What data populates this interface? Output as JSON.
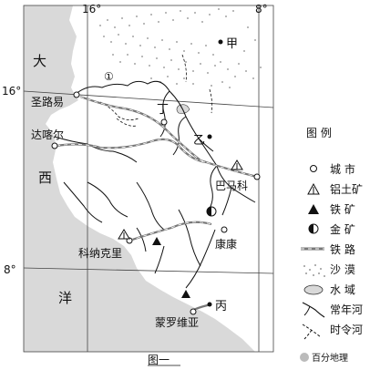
{
  "map": {
    "caption": "图一",
    "coords": {
      "lon_west": "16°",
      "lon_east": "8°",
      "lat_north": "16°",
      "lat_south": "8°"
    },
    "ocean_chars": [
      "大",
      "西",
      "洋"
    ],
    "cities": {
      "saint_louis": "圣路易",
      "dakar": "达喀尔",
      "bamako": "巴马科",
      "conakry": "科纳克里",
      "kankan": "康康",
      "monrovia": "蒙罗维亚"
    },
    "points": {
      "jia": "甲",
      "yi": "乙",
      "bing": "丙",
      "ding": "丁",
      "one": "①"
    },
    "legend": {
      "title": "图 例",
      "items": [
        {
          "key": "city",
          "label": "城 市",
          "icon": "city-circle-icon"
        },
        {
          "key": "bauxite",
          "label": "铝土矿",
          "icon": "bauxite-triangle-icon"
        },
        {
          "key": "iron",
          "label": "铁 矿",
          "icon": "iron-triangle-icon"
        },
        {
          "key": "gold",
          "label": "金 矿",
          "icon": "gold-half-circle-icon"
        },
        {
          "key": "railway",
          "label": "铁 路",
          "icon": "railway-line-icon"
        },
        {
          "key": "desert",
          "label": "沙 漠",
          "icon": "desert-dots-icon"
        },
        {
          "key": "water",
          "label": "水 域",
          "icon": "water-area-icon"
        },
        {
          "key": "perennial",
          "label": "常年河",
          "icon": "perennial-river-icon"
        },
        {
          "key": "seasonal",
          "label": "时令河",
          "icon": "seasonal-river-icon"
        }
      ]
    },
    "watermark": "百分地理",
    "colors": {
      "ocean": "#d9d9d9",
      "land": "#ffffff",
      "line": "#111111",
      "railway": "#777777"
    }
  }
}
